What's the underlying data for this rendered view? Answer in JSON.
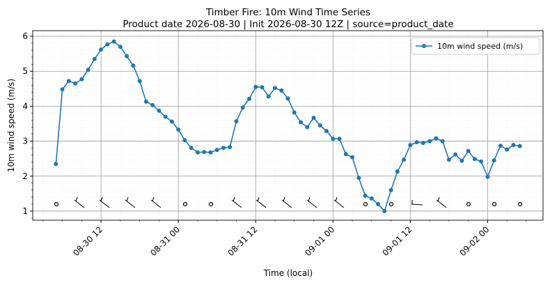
{
  "chart_data": {
    "type": "line",
    "title": "Timber Fire: 10m Wind Time Series",
    "subtitle": "Product date 2026-08-30 | Init 2026-08-30 12Z | source=product_date",
    "x_label": "Time (local)",
    "y_label": "10m wind speed (m/s)",
    "x": [
      "08-30 05",
      "08-30 06",
      "08-30 07",
      "08-30 08",
      "08-30 09",
      "08-30 10",
      "08-30 11",
      "08-30 12",
      "08-30 13",
      "08-30 14",
      "08-30 15",
      "08-30 16",
      "08-30 17",
      "08-30 18",
      "08-30 19",
      "08-30 20",
      "08-30 21",
      "08-30 22",
      "08-30 23",
      "08-31 00",
      "08-31 01",
      "08-31 02",
      "08-31 03",
      "08-31 04",
      "08-31 05",
      "08-31 06",
      "08-31 07",
      "08-31 08",
      "08-31 09",
      "08-31 10",
      "08-31 11",
      "08-31 12",
      "08-31 13",
      "08-31 14",
      "08-31 15",
      "08-31 16",
      "08-31 17",
      "08-31 18",
      "08-31 19",
      "08-31 20",
      "08-31 21",
      "08-31 22",
      "08-31 23",
      "09-01 00",
      "09-01 01",
      "09-01 02",
      "09-01 03",
      "09-01 04",
      "09-01 05",
      "09-01 06",
      "09-01 07",
      "09-01 08",
      "09-01 09",
      "09-01 10",
      "09-01 11",
      "09-01 12",
      "09-01 13",
      "09-01 14",
      "09-01 15",
      "09-01 16",
      "09-01 17",
      "09-01 18",
      "09-01 19",
      "09-01 20",
      "09-01 21",
      "09-01 22",
      "09-01 23",
      "09-02 00",
      "09-02 01",
      "09-02 02",
      "09-02 03",
      "09-02 04",
      "09-02 05"
    ],
    "series": [
      {
        "name": "10m wind speed (m/s)",
        "color": "#1f77b4",
        "values": [
          2.35,
          4.48,
          4.72,
          4.65,
          4.77,
          5.04,
          5.35,
          5.62,
          5.77,
          5.85,
          5.7,
          5.43,
          5.16,
          4.72,
          4.13,
          4.03,
          3.87,
          3.7,
          3.56,
          3.33,
          3.03,
          2.81,
          2.68,
          2.69,
          2.68,
          2.75,
          2.81,
          2.83,
          3.57,
          3.96,
          4.21,
          4.55,
          4.54,
          4.28,
          4.52,
          4.45,
          4.22,
          3.82,
          3.54,
          3.4,
          3.67,
          3.45,
          3.29,
          3.07,
          3.07,
          2.63,
          2.54,
          1.95,
          1.44,
          1.36,
          1.2,
          1.0,
          1.6,
          2.13,
          2.47,
          2.89,
          2.97,
          2.95,
          3.0,
          3.08,
          3.0,
          2.47,
          2.62,
          2.44,
          2.72,
          2.49,
          2.42,
          1.98,
          2.45,
          2.87,
          2.76,
          2.89,
          2.86
        ]
      }
    ],
    "xticks": [
      "08-30 12",
      "08-31 00",
      "08-31 12",
      "09-01 00",
      "09-01 12",
      "09-02 00"
    ],
    "ylim": [
      0.74,
      6.16
    ],
    "yticks": [
      1,
      2,
      3,
      4,
      5,
      6
    ],
    "grid": true,
    "legend": "upper right"
  }
}
